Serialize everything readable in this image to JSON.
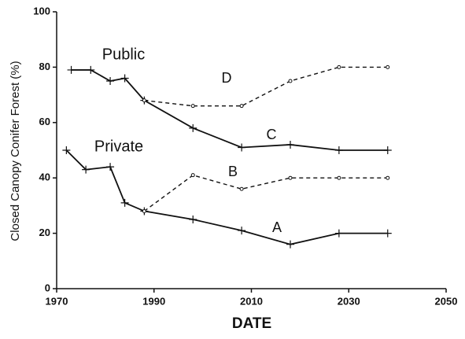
{
  "chart_data": {
    "type": "line",
    "x_label": "DATE",
    "y_label": "Closed Canopy Conifer Forest (%)",
    "xlim": [
      1970,
      2050
    ],
    "xticks": [
      1970,
      1990,
      2010,
      2030,
      2050
    ],
    "ylim": [
      0,
      100
    ],
    "yticks": [
      0,
      20,
      40,
      60,
      80,
      100
    ],
    "series": [
      {
        "name": "C",
        "color": "#111111",
        "style": "solid",
        "x": [
          1973,
          1977,
          1981,
          1984,
          1988,
          1998,
          2008,
          2018,
          2028,
          2038
        ],
        "values": [
          79,
          79,
          75,
          76,
          68,
          58,
          51,
          52,
          50,
          50
        ]
      },
      {
        "name": "D",
        "color": "#111111",
        "style": "dashed",
        "x": [
          1988,
          1998,
          2008,
          2018,
          2028,
          2038
        ],
        "values": [
          68,
          66,
          66,
          75,
          80,
          80
        ]
      },
      {
        "name": "A",
        "color": "#111111",
        "style": "solid",
        "x": [
          1972,
          1976,
          1981,
          1984,
          1988,
          1998,
          2008,
          2018,
          2028,
          2038
        ],
        "values": [
          50,
          43,
          44,
          31,
          28,
          25,
          21,
          16,
          20,
          20
        ]
      },
      {
        "name": "B",
        "color": "#111111",
        "style": "dashed",
        "x": [
          1988,
          1998,
          2008,
          2018,
          2028,
          2038
        ],
        "values": [
          28,
          41,
          36,
          40,
          40,
          40
        ]
      }
    ],
    "annotations": [
      "Public",
      "Private"
    ]
  }
}
